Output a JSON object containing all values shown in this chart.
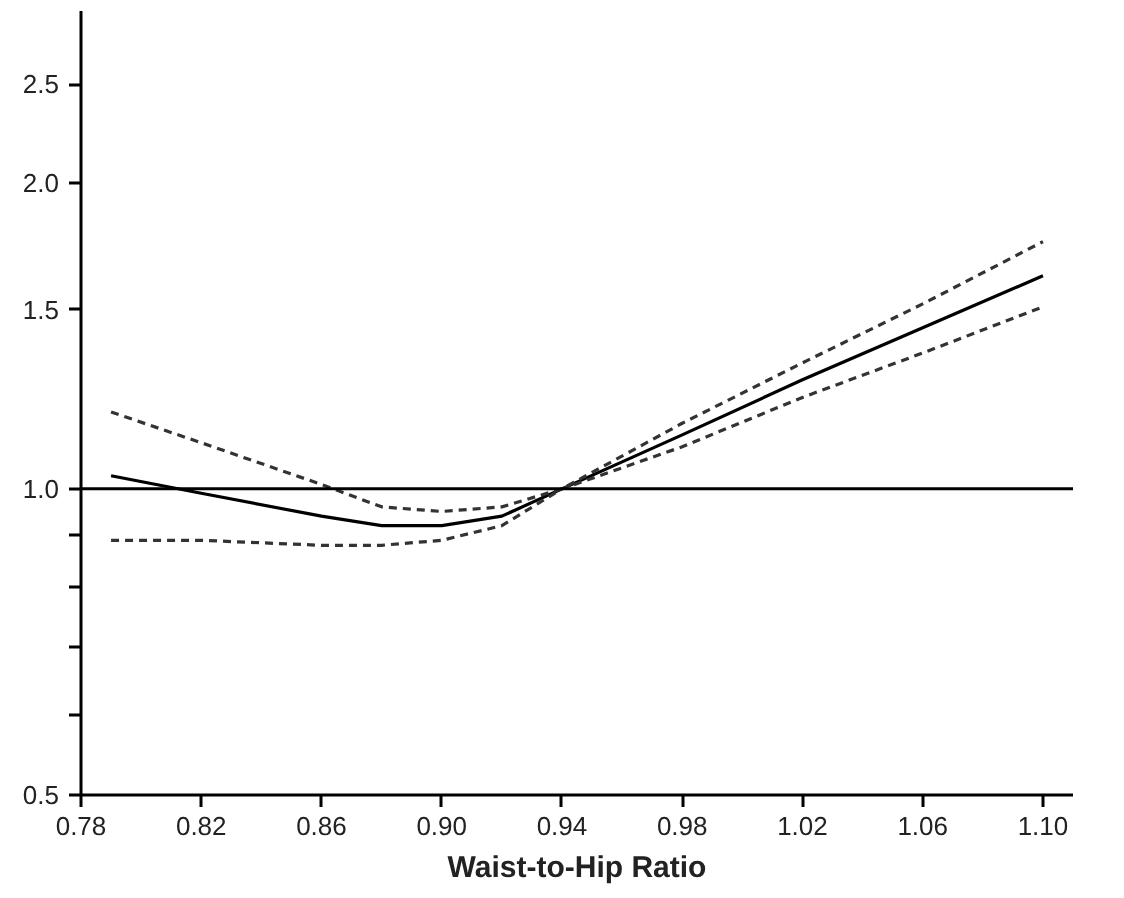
{
  "chart_data": {
    "type": "line",
    "xlabel": "Waist-to-Hip Ratio",
    "log": true,
    "x": [
      0.79,
      0.82,
      0.86,
      0.88,
      0.9,
      0.92,
      0.94,
      0.98,
      1.02,
      1.06,
      1.1
    ],
    "series": [
      {
        "color": "#000000",
        "line_style": "solid",
        "values": [
          1.03,
          0.99,
          0.94,
          0.92,
          0.92,
          0.94,
          1.0,
          1.13,
          1.28,
          1.44,
          1.62
        ]
      },
      {
        "color": "#333333",
        "line_style": "dashed",
        "values": [
          1.19,
          1.11,
          1.01,
          0.96,
          0.95,
          0.96,
          1.0,
          1.16,
          1.33,
          1.52,
          1.75
        ]
      },
      {
        "color": "#333333",
        "line_style": "dashed",
        "values": [
          0.89,
          0.89,
          0.88,
          0.88,
          0.89,
          0.92,
          1.0,
          1.1,
          1.23,
          1.36,
          1.51
        ]
      }
    ],
    "xlim": [
      0.78,
      1.11
    ],
    "ylim": [
      0.5,
      2.95
    ],
    "xticks": [
      0.78,
      0.82,
      0.86,
      {
        "value": 0.9,
        "label": "0.90"
      },
      0.94,
      0.98,
      1.02,
      1.06,
      {
        "value": 1.1,
        "label": "1.10"
      }
    ],
    "yticks": [
      {
        "value": 0.5,
        "label": "0.5"
      },
      {
        "value": 0.6,
        "label": null
      },
      {
        "value": 0.7,
        "label": null
      },
      {
        "value": 0.8,
        "label": null
      },
      {
        "value": 0.9,
        "label": null
      },
      {
        "value": 1.0,
        "label": "1.0"
      },
      {
        "value": 1.5,
        "label": "1.5"
      },
      {
        "value": 2.0,
        "label": "2.0"
      },
      {
        "value": 2.5,
        "label": "2.5"
      }
    ],
    "ref_lines": [
      {
        "axis": "y",
        "value": 1.0,
        "color": "#000000",
        "line_style": "solid"
      }
    ],
    "grid": false
  }
}
